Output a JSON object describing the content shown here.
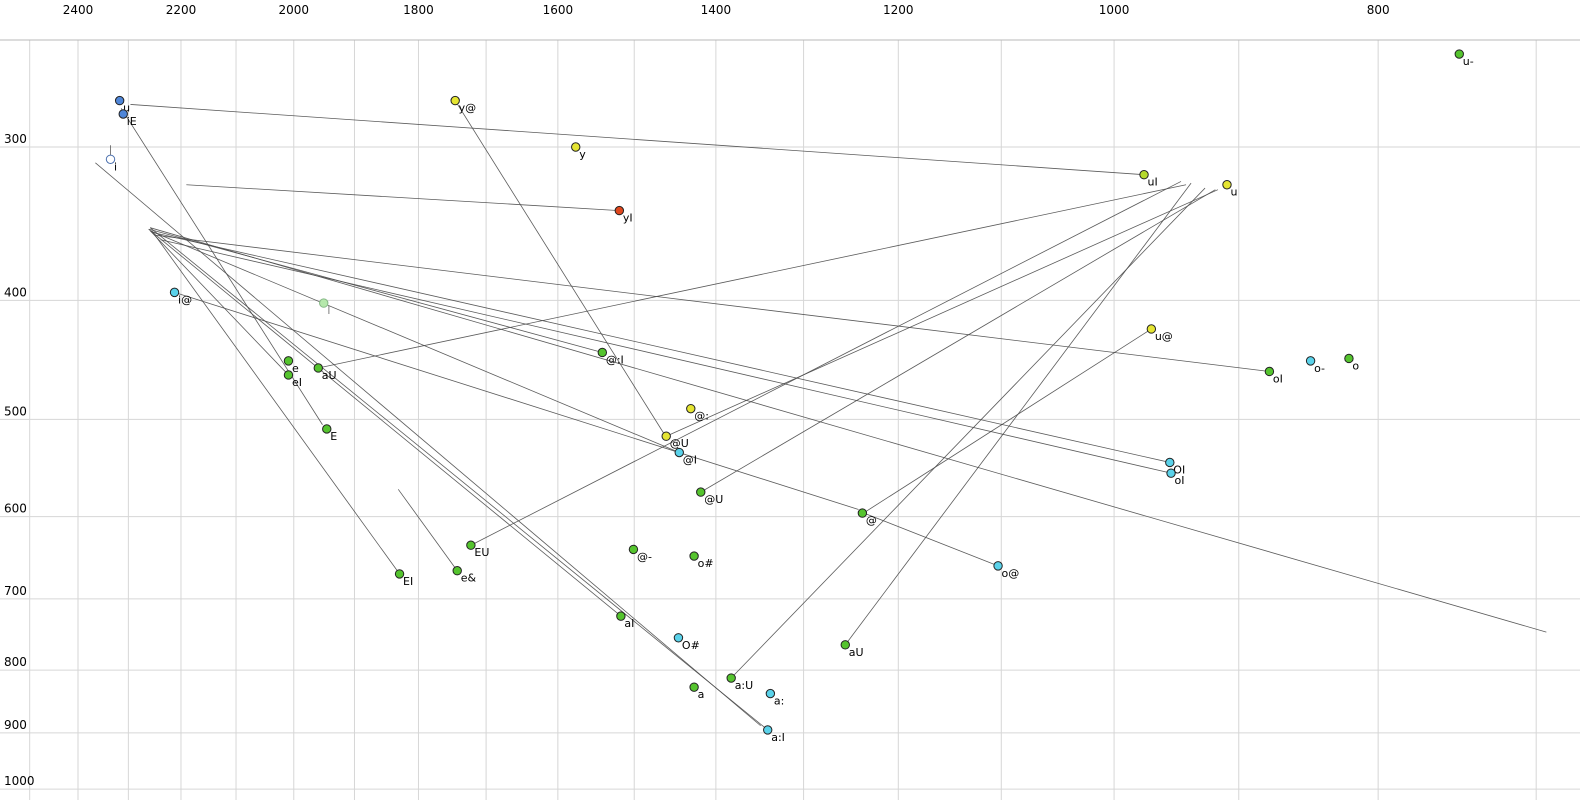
{
  "chart_data": {
    "type": "scatter",
    "title": "",
    "description": "Vowel formant plot: F2 (Hz, log scale, reversed) on top x-axis, F1 (Hz, log scale) on y-axis, with diphthong trajectory lines",
    "x_axis": {
      "label": "",
      "unit": "Hz",
      "scale": "log",
      "reversed": true,
      "ticks": [
        2400,
        2200,
        2000,
        1800,
        1600,
        1400,
        1200,
        1000,
        800
      ],
      "gridlines": [
        2500,
        2400,
        2300,
        2200,
        2100,
        2000,
        1900,
        1800,
        1700,
        1600,
        1500,
        1400,
        1300,
        1200,
        1100,
        1000,
        900,
        800,
        700
      ],
      "range": [
        2560,
        675
      ]
    },
    "y_axis": {
      "label": "",
      "unit": "Hz",
      "scale": "log",
      "reversed": true,
      "ticks": [
        300,
        400,
        500,
        600,
        700,
        800,
        900,
        1000
      ],
      "gridlines": [
        300,
        400,
        500,
        600,
        700,
        800,
        900,
        1000
      ],
      "range": [
        228,
        1020
      ]
    },
    "points": [
      {
        "label": "u-",
        "f2": 747,
        "f1": 252,
        "color": "green"
      },
      {
        "label": "u",
        "f2": 2317,
        "f1": 275,
        "color": "blue"
      },
      {
        "label": "iE",
        "f2": 2310,
        "f1": 282,
        "color": "blue"
      },
      {
        "label": "i",
        "f2": 2335,
        "f1": 307,
        "color": "open"
      },
      {
        "label": "y@",
        "f2": 1745,
        "f1": 275,
        "color": "yellow"
      },
      {
        "label": "y",
        "f2": 1576,
        "f1": 300,
        "color": "yellow"
      },
      {
        "label": "yI",
        "f2": 1519,
        "f1": 338,
        "color": "red"
      },
      {
        "label": "uI",
        "f2": 975,
        "f1": 316,
        "color": "yellowgreen"
      },
      {
        "label": "u",
        "f2": 909,
        "f1": 322,
        "color": "yellow"
      },
      {
        "label": "i@",
        "f2": 2212,
        "f1": 394,
        "color": "cyan"
      },
      {
        "label": "I",
        "f2": 1950,
        "f1": 402,
        "color": "palegreen",
        "faint": true
      },
      {
        "label": "u@",
        "f2": 969,
        "f1": 422,
        "color": "yellow"
      },
      {
        "label": "o-",
        "f2": 847,
        "f1": 448,
        "color": "cyan"
      },
      {
        "label": "o",
        "f2": 820,
        "f1": 446,
        "color": "green"
      },
      {
        "label": "oI",
        "f2": 877,
        "f1": 457,
        "color": "green"
      },
      {
        "label": "e",
        "f2": 2009,
        "f1": 448,
        "color": "green"
      },
      {
        "label": "eI",
        "f2": 2009,
        "f1": 460,
        "color": "green"
      },
      {
        "label": "aU",
        "f2": 1959,
        "f1": 454,
        "color": "green"
      },
      {
        "label": "@:I",
        "f2": 1541,
        "f1": 441,
        "color": "green"
      },
      {
        "label": "@:",
        "f2": 1430,
        "f1": 490,
        "color": "yellow"
      },
      {
        "label": "@U",
        "f2": 1460,
        "f1": 516,
        "color": "yellow"
      },
      {
        "label": "@I",
        "f2": 1444,
        "f1": 532,
        "color": "cyan"
      },
      {
        "label": "E",
        "f2": 1945,
        "f1": 509,
        "color": "green"
      },
      {
        "label": "@U",
        "f2": 1418,
        "f1": 573,
        "color": "green"
      },
      {
        "label": "OI",
        "f2": 954,
        "f1": 542,
        "color": "cyan"
      },
      {
        "label": "oI",
        "f2": 953,
        "f1": 553,
        "color": "cyan"
      },
      {
        "label": "@",
        "f2": 1237,
        "f1": 596,
        "color": "green"
      },
      {
        "label": "EU",
        "f2": 1722,
        "f1": 633,
        "color": "green"
      },
      {
        "label": "@-",
        "f2": 1501,
        "f1": 638,
        "color": "green"
      },
      {
        "label": "o#",
        "f2": 1426,
        "f1": 646,
        "color": "green"
      },
      {
        "label": "e&",
        "f2": 1742,
        "f1": 664,
        "color": "green"
      },
      {
        "label": "EI",
        "f2": 1829,
        "f1": 668,
        "color": "green"
      },
      {
        "label": "o@",
        "f2": 1103,
        "f1": 658,
        "color": "cyan"
      },
      {
        "label": "aI",
        "f2": 1517,
        "f1": 723,
        "color": "green"
      },
      {
        "label": "O#",
        "f2": 1445,
        "f1": 753,
        "color": "cyan"
      },
      {
        "label": "aU",
        "f2": 1255,
        "f1": 763,
        "color": "green"
      },
      {
        "label": "a:U",
        "f2": 1382,
        "f1": 812,
        "color": "green"
      },
      {
        "label": "a",
        "f2": 1426,
        "f1": 826,
        "color": "green"
      },
      {
        "label": "a:",
        "f2": 1337,
        "f1": 836,
        "color": "cyan"
      },
      {
        "label": "a:I",
        "f2": 1340,
        "f1": 895,
        "color": "cyan"
      }
    ],
    "segments": [
      {
        "name": "uI-trajectory",
        "from": [
          975,
          316
        ],
        "to": [
          2296,
          277
        ]
      },
      {
        "name": "yI-trajectory",
        "from": [
          1519,
          338
        ],
        "to": [
          2190,
          322
        ]
      },
      {
        "name": "iE-trajectory",
        "from": [
          2314,
          279
        ],
        "to": [
          1952,
          505
        ]
      },
      {
        "name": "i@-trajectory",
        "from": [
          2212,
          394
        ],
        "to": [
          1241,
          592
        ]
      },
      {
        "name": "y@-trajectory",
        "from": [
          1745,
          275
        ],
        "to": [
          1460,
          517
        ]
      },
      {
        "name": "u@-trajectory",
        "from": [
          969,
          422
        ],
        "to": [
          1233,
          594
        ]
      },
      {
        "name": "o@-trajectory",
        "from": [
          1103,
          658
        ],
        "to": [
          1233,
          597
        ]
      },
      {
        "name": "eI-trajectory",
        "from": [
          2009,
          460
        ],
        "to": [
          2258,
          351
        ]
      },
      {
        "name": "EI-trajectory",
        "from": [
          1829,
          668
        ],
        "to": [
          2255,
          351
        ]
      },
      {
        "name": "aI-trajectory",
        "from": [
          1517,
          723
        ],
        "to": [
          2261,
          350
        ]
      },
      {
        "name": "a:I-trajectory",
        "from": [
          1340,
          895
        ],
        "to": [
          2258,
          349
        ]
      },
      {
        "name": "oI-trajectory",
        "from": [
          877,
          457
        ],
        "to": [
          2248,
          354
        ]
      },
      {
        "name": "OI-trajectory",
        "from": [
          954,
          542
        ],
        "to": [
          2255,
          352
        ]
      },
      {
        "name": "oI-trajectory-2",
        "from": [
          953,
          553
        ],
        "to": [
          2238,
          357
        ]
      },
      {
        "name": "@I-trajectory",
        "from": [
          1444,
          532
        ],
        "to": [
          2258,
          351
        ]
      },
      {
        "name": "@:I-trajectory",
        "from": [
          1541,
          441
        ],
        "to": [
          2260,
          350
        ]
      },
      {
        "name": "aU-trajectory",
        "from": [
          1255,
          763
        ],
        "to": [
          937,
          321
        ]
      },
      {
        "name": "a:U-trajectory",
        "from": [
          1382,
          812
        ],
        "to": [
          926,
          324
        ]
      },
      {
        "name": "@U-trajectory",
        "from": [
          1418,
          573
        ],
        "to": [
          918,
          325
        ]
      },
      {
        "name": "EU-trajectory",
        "from": [
          1722,
          633
        ],
        "to": [
          945,
          320
        ]
      },
      {
        "name": "aU-trajectory-2",
        "from": [
          1959,
          454
        ],
        "to": [
          941,
          322
        ]
      },
      {
        "name": "e&-trajectory",
        "from": [
          1742,
          664
        ],
        "to": [
          1831,
          570
        ]
      },
      {
        "name": "i-tick",
        "from": [
          2335,
          299
        ],
        "to": [
          2335,
          307
        ]
      },
      {
        "name": "@U-trajectory-2",
        "from": [
          1460,
          516
        ],
        "to": [
          916,
          325
        ]
      },
      {
        "name": "long-diagonal-1",
        "from": [
          2258,
          349
        ],
        "to": [
          694,
          745
        ]
      },
      {
        "name": "long-diagonal-2",
        "from": [
          2365,
          309
        ],
        "to": [
          1348,
          888
        ]
      }
    ]
  },
  "colors": {
    "green": "#55c42e",
    "yellow": "#e5e532",
    "cyan": "#5ad2ea",
    "blue": "#4f86d8",
    "red": "#e0471d",
    "yellowgreen": "#b5d92c",
    "open": "#ffffff",
    "palegreen": "#b5e8ab",
    "grid": "#d6d6d6",
    "axis_border": "#b8b8b8",
    "trajectory_line": "#4a4a4a",
    "tick_label": "#000000",
    "point_outline": "#222222",
    "background": "#ffffff"
  }
}
